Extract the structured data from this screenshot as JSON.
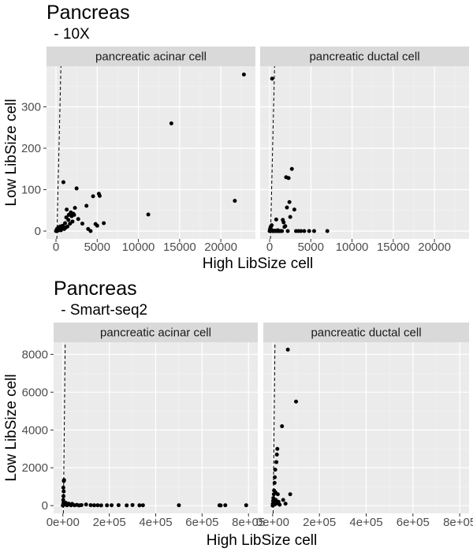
{
  "chart_data": [
    {
      "type": "scatter",
      "title": "Pancreas",
      "subtitle": " - 10X",
      "xlabel": "High LibSize cell",
      "ylabel": "Low LibSize cell",
      "xlim": [
        -1150,
        24200
      ],
      "ylim": [
        -19,
        398
      ],
      "x_ticks": [
        0,
        5000,
        10000,
        15000,
        20000
      ],
      "x_tick_labels": [
        "0",
        "5000",
        "10000",
        "15000",
        "20000"
      ],
      "y_ticks": [
        0,
        100,
        200,
        300
      ],
      "y_tick_labels": [
        "0",
        "100",
        "200",
        "300"
      ],
      "grid": true,
      "reference_line": {
        "style": "dashed",
        "x_at_y0": 100,
        "x_at_ymax": 600
      },
      "facets": [
        {
          "label": "pancreatic acinar cell",
          "points": [
            [
              0,
              0
            ],
            [
              80,
              3
            ],
            [
              150,
              6
            ],
            [
              250,
              1
            ],
            [
              300,
              9
            ],
            [
              400,
              4
            ],
            [
              500,
              11
            ],
            [
              600,
              2
            ],
            [
              700,
              7
            ],
            [
              800,
              13
            ],
            [
              1000,
              5
            ],
            [
              1100,
              19
            ],
            [
              1200,
              9
            ],
            [
              1250,
              33
            ],
            [
              1300,
              52
            ],
            [
              1400,
              11
            ],
            [
              1500,
              27
            ],
            [
              1550,
              39
            ],
            [
              1700,
              18
            ],
            [
              1800,
              45
            ],
            [
              1900,
              36
            ],
            [
              2000,
              23
            ],
            [
              2100,
              42
            ],
            [
              2200,
              39
            ],
            [
              2300,
              56
            ],
            [
              2500,
              103
            ],
            [
              2700,
              29
            ],
            [
              900,
              118
            ],
            [
              3200,
              18
            ],
            [
              3700,
              61
            ],
            [
              3900,
              5
            ],
            [
              4200,
              0
            ],
            [
              4500,
              84
            ],
            [
              4800,
              17
            ],
            [
              5000,
              13
            ],
            [
              5200,
              90
            ],
            [
              5300,
              85
            ],
            [
              5800,
              19
            ],
            [
              11200,
              40
            ],
            [
              14000,
              260
            ],
            [
              21700,
              73
            ],
            [
              22800,
              378
            ]
          ]
        },
        {
          "label": "pancreatic ductal cell",
          "points": [
            [
              0,
              0
            ],
            [
              30,
              2
            ],
            [
              60,
              5
            ],
            [
              100,
              8
            ],
            [
              150,
              11
            ],
            [
              200,
              3
            ],
            [
              250,
              14
            ],
            [
              300,
              1
            ],
            [
              350,
              0
            ],
            [
              400,
              0
            ],
            [
              450,
              1
            ],
            [
              500,
              0
            ],
            [
              600,
              0
            ],
            [
              700,
              1
            ],
            [
              800,
              0
            ],
            [
              900,
              0
            ],
            [
              1000,
              2
            ],
            [
              1100,
              0
            ],
            [
              1200,
              0
            ],
            [
              1300,
              0
            ],
            [
              1500,
              0
            ],
            [
              1600,
              27
            ],
            [
              1700,
              21
            ],
            [
              1800,
              10
            ],
            [
              1900,
              12
            ],
            [
              2000,
              130
            ],
            [
              2100,
              57
            ],
            [
              2200,
              0
            ],
            [
              2300,
              128
            ],
            [
              2400,
              70
            ],
            [
              2500,
              34
            ],
            [
              2700,
              150
            ],
            [
              3000,
              52
            ],
            [
              3200,
              0
            ],
            [
              3500,
              0
            ],
            [
              3800,
              0
            ],
            [
              4200,
              0
            ],
            [
              4800,
              0
            ],
            [
              5400,
              0
            ],
            [
              7000,
              0
            ],
            [
              300,
              368
            ],
            [
              800,
              28
            ]
          ]
        }
      ]
    },
    {
      "type": "scatter",
      "title": "Pancreas",
      "subtitle": " - Smart-seq2",
      "xlabel": "High LibSize cell",
      "ylabel": "Low LibSize cell",
      "xlim": [
        -40000,
        840000
      ],
      "ylim": [
        -410,
        8640
      ],
      "x_ticks": [
        0,
        200000,
        400000,
        600000,
        800000
      ],
      "x_tick_labels": [
        "0e+00",
        "2e+05",
        "4e+05",
        "6e+05",
        "8e+05"
      ],
      "y_ticks": [
        0,
        2000,
        4000,
        6000,
        8000
      ],
      "y_tick_labels": [
        "0",
        "2000",
        "4000",
        "6000",
        "8000"
      ],
      "grid": true,
      "reference_line": {
        "style": "dashed",
        "x_at_y0": 2000,
        "x_at_ymax": 10000
      },
      "facets": [
        {
          "label": "pancreatic acinar cell",
          "points": [
            [
              0,
              0
            ],
            [
              2000,
              80
            ],
            [
              3000,
              160
            ],
            [
              1500,
              300
            ],
            [
              2500,
              500
            ],
            [
              3500,
              750
            ],
            [
              2000,
              950
            ],
            [
              4000,
              1300
            ],
            [
              5000,
              1350
            ],
            [
              8000,
              60
            ],
            [
              12000,
              150
            ],
            [
              18000,
              20
            ],
            [
              25000,
              100
            ],
            [
              30000,
              60
            ],
            [
              35000,
              20
            ],
            [
              40000,
              90
            ],
            [
              50000,
              20
            ],
            [
              60000,
              40
            ],
            [
              70000,
              10
            ],
            [
              80000,
              30
            ],
            [
              100000,
              60
            ],
            [
              120000,
              25
            ],
            [
              135000,
              15
            ],
            [
              150000,
              20
            ],
            [
              165000,
              10
            ],
            [
              190000,
              15
            ],
            [
              210000,
              20
            ],
            [
              240000,
              25
            ],
            [
              275000,
              10
            ],
            [
              300000,
              30
            ],
            [
              330000,
              15
            ],
            [
              345000,
              20
            ],
            [
              500000,
              20
            ],
            [
              675000,
              15
            ],
            [
              680000,
              10
            ],
            [
              700000,
              20
            ],
            [
              790000,
              20
            ]
          ]
        },
        {
          "label": "pancreatic ductal cell",
          "points": [
            [
              0,
              0
            ],
            [
              1000,
              100
            ],
            [
              2000,
              250
            ],
            [
              3000,
              400
            ],
            [
              4000,
              150
            ],
            [
              5000,
              600
            ],
            [
              6000,
              800
            ],
            [
              7000,
              50
            ],
            [
              8000,
              1200
            ],
            [
              9000,
              1500
            ],
            [
              10000,
              200
            ],
            [
              11000,
              1900
            ],
            [
              12000,
              700
            ],
            [
              14000,
              300
            ],
            [
              15000,
              100
            ],
            [
              16000,
              2300
            ],
            [
              18000,
              2700
            ],
            [
              20000,
              3000
            ],
            [
              22000,
              600
            ],
            [
              25000,
              200
            ],
            [
              30000,
              50
            ],
            [
              40000,
              4200
            ],
            [
              45000,
              300
            ],
            [
              55000,
              100
            ],
            [
              65000,
              8250
            ],
            [
              75000,
              600
            ],
            [
              100000,
              5500
            ]
          ]
        }
      ]
    }
  ]
}
